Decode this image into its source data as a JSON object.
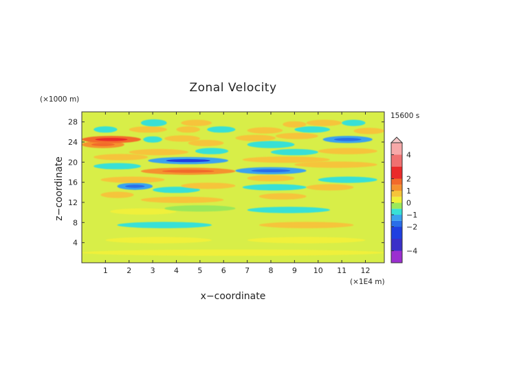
{
  "chart_data": {
    "type": "heatmap",
    "title": "Zonal Velocity",
    "xlabel": "x−coordinate",
    "ylabel": "z−coordinate",
    "x_units": "(×1E4 m)",
    "y_units": "(×1000 m)",
    "time_label": "15600 s",
    "xlim": [
      0,
      12.8
    ],
    "ylim": [
      0,
      30
    ],
    "x_ticks": [
      1,
      2,
      3,
      4,
      5,
      6,
      7,
      8,
      9,
      10,
      11,
      12
    ],
    "y_ticks": [
      4,
      8,
      12,
      16,
      20,
      24,
      28
    ],
    "colorbar": {
      "range": [
        -5,
        5
      ],
      "tick_values": [
        4,
        2,
        1,
        0,
        -1,
        -2,
        -4
      ],
      "tick_labels": [
        "4",
        "2",
        "1",
        "0",
        "−1",
        "−2",
        "−4"
      ],
      "levels": [
        -5,
        -4,
        -3,
        -2,
        -1.5,
        -1,
        -0.5,
        0,
        0.5,
        1,
        1.5,
        2,
        3,
        4,
        5
      ],
      "colors": [
        "#9b2fd0",
        "#3a2fc8",
        "#1f3fe0",
        "#2a6ee8",
        "#3aa2ee",
        "#38e0d6",
        "#9be85a",
        "#f0f03a",
        "#f6c43a",
        "#f5922e",
        "#f26a2a",
        "#ea2a2a",
        "#f07070",
        "#f7a8a8"
      ],
      "extend_top": true
    },
    "features": [
      {
        "z": 2.0,
        "x0": 0.0,
        "x1": 12.8,
        "value": 0.2
      },
      {
        "z": 4.5,
        "x0": 1.0,
        "x1": 5.5,
        "value": 0.35
      },
      {
        "z": 4.5,
        "x0": 7.0,
        "x1": 12.0,
        "value": 0.3
      },
      {
        "z": 7.5,
        "x0": 1.5,
        "x1": 5.5,
        "value": -0.6
      },
      {
        "z": 7.5,
        "x0": 7.5,
        "x1": 11.5,
        "value": 0.8
      },
      {
        "z": 10.2,
        "x0": 1.2,
        "x1": 4.0,
        "value": 0.35
      },
      {
        "z": 10.8,
        "x0": 3.5,
        "x1": 6.5,
        "value": -0.4
      },
      {
        "z": 10.5,
        "x0": 7.0,
        "x1": 10.5,
        "value": -0.8
      },
      {
        "z": 12.5,
        "x0": 2.5,
        "x1": 6.0,
        "value": 0.8
      },
      {
        "z": 13.2,
        "x0": 7.5,
        "x1": 9.5,
        "value": 0.9
      },
      {
        "z": 13.5,
        "x0": 0.8,
        "x1": 2.2,
        "value": 0.9
      },
      {
        "z": 14.5,
        "x0": 3.0,
        "x1": 5.0,
        "value": -0.6
      },
      {
        "z": 15.2,
        "x0": 1.5,
        "x1": 3.0,
        "value": -1.2
      },
      {
        "z": 15.3,
        "x0": 4.2,
        "x1": 6.5,
        "value": 0.9
      },
      {
        "z": 15.0,
        "x0": 9.5,
        "x1": 11.5,
        "value": 0.9
      },
      {
        "z": 15.0,
        "x0": 6.8,
        "x1": 9.5,
        "value": -0.6
      },
      {
        "z": 16.5,
        "x0": 0.8,
        "x1": 3.5,
        "value": 0.9
      },
      {
        "z": 16.8,
        "x0": 7.0,
        "x1": 9.0,
        "value": 0.8
      },
      {
        "z": 16.5,
        "x0": 10.0,
        "x1": 12.5,
        "value": -0.7
      },
      {
        "z": 18.2,
        "x0": 2.5,
        "x1": 6.5,
        "value": 1.2
      },
      {
        "z": 18.3,
        "x0": 6.5,
        "x1": 9.5,
        "value": -1.2
      },
      {
        "z": 19.2,
        "x0": 0.5,
        "x1": 2.5,
        "value": -0.6
      },
      {
        "z": 19.5,
        "x0": 9.0,
        "x1": 12.5,
        "value": 0.9
      },
      {
        "z": 20.3,
        "x0": 2.8,
        "x1": 6.2,
        "value": -1.5
      },
      {
        "z": 20.5,
        "x0": 6.8,
        "x1": 10.5,
        "value": 0.9
      },
      {
        "z": 21.0,
        "x0": 0.5,
        "x1": 2.8,
        "value": 0.8
      },
      {
        "z": 22.0,
        "x0": 2.0,
        "x1": 4.5,
        "value": 0.8
      },
      {
        "z": 22.2,
        "x0": 4.8,
        "x1": 6.2,
        "value": -0.9
      },
      {
        "z": 22.0,
        "x0": 8.0,
        "x1": 10.0,
        "value": -0.8
      },
      {
        "z": 22.2,
        "x0": 10.0,
        "x1": 12.5,
        "value": 0.8
      },
      {
        "z": 23.5,
        "x0": 0.0,
        "x1": 1.8,
        "value": 1.2
      },
      {
        "z": 23.8,
        "x0": 4.5,
        "x1": 6.0,
        "value": 0.9
      },
      {
        "z": 23.5,
        "x0": 7.0,
        "x1": 9.0,
        "value": -1.0
      },
      {
        "z": 24.5,
        "x0": 0.0,
        "x1": 2.5,
        "value": 1.5
      },
      {
        "z": 24.5,
        "x0": 2.6,
        "x1": 3.4,
        "value": -0.7
      },
      {
        "z": 24.7,
        "x0": 3.5,
        "x1": 5.0,
        "value": 0.9
      },
      {
        "z": 24.8,
        "x0": 6.5,
        "x1": 8.2,
        "value": 0.9
      },
      {
        "z": 24.5,
        "x0": 10.2,
        "x1": 12.3,
        "value": -1.3
      },
      {
        "z": 25.2,
        "x0": 8.2,
        "x1": 10.0,
        "value": 0.9
      },
      {
        "z": 26.5,
        "x0": 0.5,
        "x1": 1.5,
        "value": -0.9
      },
      {
        "z": 26.5,
        "x0": 2.0,
        "x1": 3.6,
        "value": 0.9
      },
      {
        "z": 26.5,
        "x0": 4.0,
        "x1": 5.0,
        "value": 0.8
      },
      {
        "z": 26.5,
        "x0": 5.3,
        "x1": 6.5,
        "value": -0.7
      },
      {
        "z": 26.3,
        "x0": 7.0,
        "x1": 8.5,
        "value": 0.9
      },
      {
        "z": 26.5,
        "x0": 9.0,
        "x1": 10.5,
        "value": -0.9
      },
      {
        "z": 26.2,
        "x0": 11.5,
        "x1": 12.8,
        "value": 0.9
      },
      {
        "z": 27.8,
        "x0": 2.5,
        "x1": 3.6,
        "value": -1.0
      },
      {
        "z": 27.8,
        "x0": 4.2,
        "x1": 5.5,
        "value": 0.8
      },
      {
        "z": 27.5,
        "x0": 8.5,
        "x1": 9.5,
        "value": 0.7
      },
      {
        "z": 27.8,
        "x0": 9.5,
        "x1": 11.0,
        "value": 0.9
      },
      {
        "z": 27.8,
        "x0": 11.0,
        "x1": 12.0,
        "value": -0.9
      }
    ]
  }
}
